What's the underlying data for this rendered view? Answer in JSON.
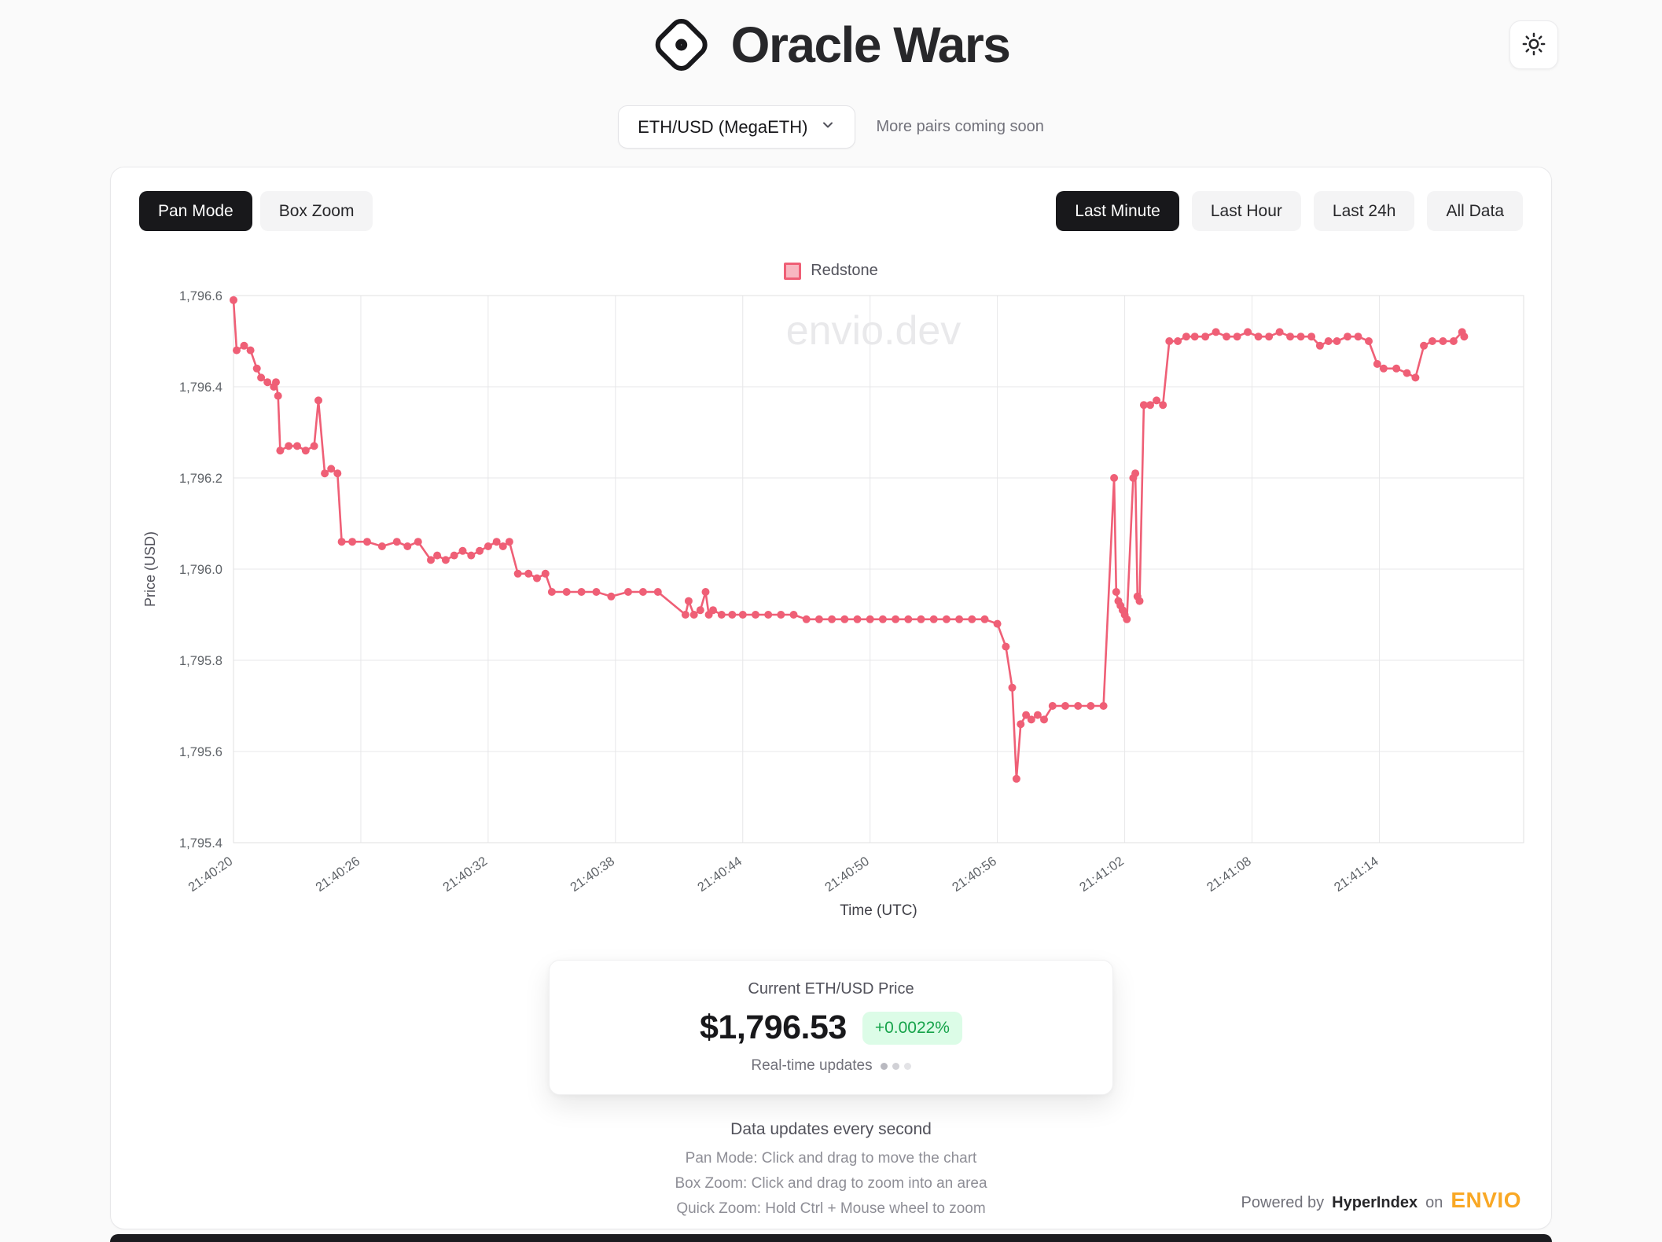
{
  "header": {
    "title": "Oracle Wars"
  },
  "pair_selector": {
    "value": "ETH/USD (MegaETH)",
    "hint": "More pairs coming soon"
  },
  "toolbar": {
    "modes": [
      {
        "label": "Pan Mode",
        "active": true
      },
      {
        "label": "Box Zoom",
        "active": false
      }
    ],
    "ranges": [
      {
        "label": "Last Minute",
        "active": true
      },
      {
        "label": "Last Hour",
        "active": false
      },
      {
        "label": "Last 24h",
        "active": false
      },
      {
        "label": "All Data",
        "active": false
      }
    ]
  },
  "chart_data": {
    "type": "line",
    "series_name": "Redstone",
    "color": "#ef5f76",
    "watermark": "envio.dev",
    "xlabel": "Time (UTC)",
    "ylabel": "Price (USD)",
    "x_base_time": "21:40:20",
    "xlim_seconds": [
      0,
      60.8
    ],
    "ylim": [
      1795.4,
      1796.6
    ],
    "grid": true,
    "legend_position": "top",
    "x_ticks": [
      {
        "t": 0,
        "label": "21:40:20"
      },
      {
        "t": 6,
        "label": "21:40:26"
      },
      {
        "t": 12,
        "label": "21:40:32"
      },
      {
        "t": 18,
        "label": "21:40:38"
      },
      {
        "t": 24,
        "label": "21:40:44"
      },
      {
        "t": 30,
        "label": "21:40:50"
      },
      {
        "t": 36,
        "label": "21:40:56"
      },
      {
        "t": 42,
        "label": "21:41:02"
      },
      {
        "t": 48,
        "label": "21:41:08"
      },
      {
        "t": 54,
        "label": "21:41:14"
      }
    ],
    "y_ticks": [
      {
        "v": 1796.6,
        "label": "1,796.6"
      },
      {
        "v": 1796.4,
        "label": "1,796.4"
      },
      {
        "v": 1796.2,
        "label": "1,796.2"
      },
      {
        "v": 1796.0,
        "label": "1,796.0"
      },
      {
        "v": 1795.8,
        "label": "1,795.8"
      },
      {
        "v": 1795.6,
        "label": "1,795.6"
      },
      {
        "v": 1795.4,
        "label": "1,795.4"
      }
    ],
    "points": [
      [
        0,
        1796.59
      ],
      [
        0.15,
        1796.48
      ],
      [
        0.5,
        1796.49
      ],
      [
        0.8,
        1796.48
      ],
      [
        1.1,
        1796.44
      ],
      [
        1.3,
        1796.42
      ],
      [
        1.6,
        1796.41
      ],
      [
        1.9,
        1796.4
      ],
      [
        2.0,
        1796.41
      ],
      [
        2.1,
        1796.38
      ],
      [
        2.2,
        1796.26
      ],
      [
        2.6,
        1796.27
      ],
      [
        3.0,
        1796.27
      ],
      [
        3.4,
        1796.26
      ],
      [
        3.8,
        1796.27
      ],
      [
        4.0,
        1796.37
      ],
      [
        4.3,
        1796.21
      ],
      [
        4.6,
        1796.22
      ],
      [
        4.9,
        1796.21
      ],
      [
        5.1,
        1796.06
      ],
      [
        5.6,
        1796.06
      ],
      [
        6.3,
        1796.06
      ],
      [
        7.0,
        1796.05
      ],
      [
        7.7,
        1796.06
      ],
      [
        8.2,
        1796.05
      ],
      [
        8.7,
        1796.06
      ],
      [
        9.3,
        1796.02
      ],
      [
        9.6,
        1796.03
      ],
      [
        10.0,
        1796.02
      ],
      [
        10.4,
        1796.03
      ],
      [
        10.8,
        1796.04
      ],
      [
        11.2,
        1796.03
      ],
      [
        11.6,
        1796.04
      ],
      [
        12.0,
        1796.05
      ],
      [
        12.4,
        1796.06
      ],
      [
        12.7,
        1796.05
      ],
      [
        13.0,
        1796.06
      ],
      [
        13.4,
        1795.99
      ],
      [
        13.9,
        1795.99
      ],
      [
        14.3,
        1795.98
      ],
      [
        14.7,
        1795.99
      ],
      [
        15.0,
        1795.95
      ],
      [
        15.7,
        1795.95
      ],
      [
        16.4,
        1795.95
      ],
      [
        17.1,
        1795.95
      ],
      [
        17.8,
        1795.94
      ],
      [
        18.6,
        1795.95
      ],
      [
        19.3,
        1795.95
      ],
      [
        20.0,
        1795.95
      ],
      [
        21.3,
        1795.9
      ],
      [
        21.45,
        1795.93
      ],
      [
        21.7,
        1795.9
      ],
      [
        22.0,
        1795.91
      ],
      [
        22.25,
        1795.95
      ],
      [
        22.4,
        1795.9
      ],
      [
        22.6,
        1795.91
      ],
      [
        23.0,
        1795.9
      ],
      [
        23.5,
        1795.9
      ],
      [
        24.0,
        1795.9
      ],
      [
        24.6,
        1795.9
      ],
      [
        25.2,
        1795.9
      ],
      [
        25.8,
        1795.9
      ],
      [
        26.4,
        1795.9
      ],
      [
        27.0,
        1795.89
      ],
      [
        27.6,
        1795.89
      ],
      [
        28.2,
        1795.89
      ],
      [
        28.8,
        1795.89
      ],
      [
        29.4,
        1795.89
      ],
      [
        30.0,
        1795.89
      ],
      [
        30.6,
        1795.89
      ],
      [
        31.2,
        1795.89
      ],
      [
        31.8,
        1795.89
      ],
      [
        32.4,
        1795.89
      ],
      [
        33.0,
        1795.89
      ],
      [
        33.6,
        1795.89
      ],
      [
        34.2,
        1795.89
      ],
      [
        34.8,
        1795.89
      ],
      [
        35.4,
        1795.89
      ],
      [
        36.0,
        1795.88
      ],
      [
        36.4,
        1795.83
      ],
      [
        36.7,
        1795.74
      ],
      [
        36.9,
        1795.54
      ],
      [
        37.1,
        1795.66
      ],
      [
        37.35,
        1795.68
      ],
      [
        37.6,
        1795.67
      ],
      [
        37.9,
        1795.68
      ],
      [
        38.2,
        1795.67
      ],
      [
        38.6,
        1795.7
      ],
      [
        39.2,
        1795.7
      ],
      [
        39.8,
        1795.7
      ],
      [
        40.4,
        1795.7
      ],
      [
        41.0,
        1795.7
      ],
      [
        41.5,
        1796.2
      ],
      [
        41.6,
        1795.95
      ],
      [
        41.7,
        1795.93
      ],
      [
        41.8,
        1795.92
      ],
      [
        41.9,
        1795.91
      ],
      [
        42.0,
        1795.9
      ],
      [
        42.1,
        1795.89
      ],
      [
        42.4,
        1796.2
      ],
      [
        42.5,
        1796.21
      ],
      [
        42.6,
        1795.94
      ],
      [
        42.7,
        1795.93
      ],
      [
        42.9,
        1796.36
      ],
      [
        43.2,
        1796.36
      ],
      [
        43.5,
        1796.37
      ],
      [
        43.8,
        1796.36
      ],
      [
        44.1,
        1796.5
      ],
      [
        44.5,
        1796.5
      ],
      [
        44.9,
        1796.51
      ],
      [
        45.3,
        1796.51
      ],
      [
        45.8,
        1796.51
      ],
      [
        46.3,
        1796.52
      ],
      [
        46.8,
        1796.51
      ],
      [
        47.3,
        1796.51
      ],
      [
        47.8,
        1796.52
      ],
      [
        48.3,
        1796.51
      ],
      [
        48.8,
        1796.51
      ],
      [
        49.3,
        1796.52
      ],
      [
        49.8,
        1796.51
      ],
      [
        50.3,
        1796.51
      ],
      [
        50.8,
        1796.51
      ],
      [
        51.2,
        1796.49
      ],
      [
        51.6,
        1796.5
      ],
      [
        52.0,
        1796.5
      ],
      [
        52.5,
        1796.51
      ],
      [
        53.0,
        1796.51
      ],
      [
        53.5,
        1796.5
      ],
      [
        53.9,
        1796.45
      ],
      [
        54.2,
        1796.44
      ],
      [
        54.8,
        1796.44
      ],
      [
        55.3,
        1796.43
      ],
      [
        55.7,
        1796.42
      ],
      [
        56.1,
        1796.49
      ],
      [
        56.5,
        1796.5
      ],
      [
        57.0,
        1796.5
      ],
      [
        57.5,
        1796.5
      ],
      [
        57.9,
        1796.52
      ],
      [
        58.0,
        1796.51
      ]
    ]
  },
  "price_card": {
    "label": "Current ETH/USD Price",
    "price": "$1,796.53",
    "change": "+0.0022%",
    "status": "Real-time updates"
  },
  "footer": {
    "update_note": "Data updates every second",
    "lines": [
      "Pan Mode: Click and drag to move the chart",
      "Box Zoom: Click and drag to zoom into an area",
      "Quick Zoom: Hold Ctrl + Mouse wheel to zoom"
    ],
    "powered": {
      "prefix": "Powered by",
      "brand": "HyperIndex",
      "conj": "on",
      "logo": "ENVIO"
    }
  }
}
